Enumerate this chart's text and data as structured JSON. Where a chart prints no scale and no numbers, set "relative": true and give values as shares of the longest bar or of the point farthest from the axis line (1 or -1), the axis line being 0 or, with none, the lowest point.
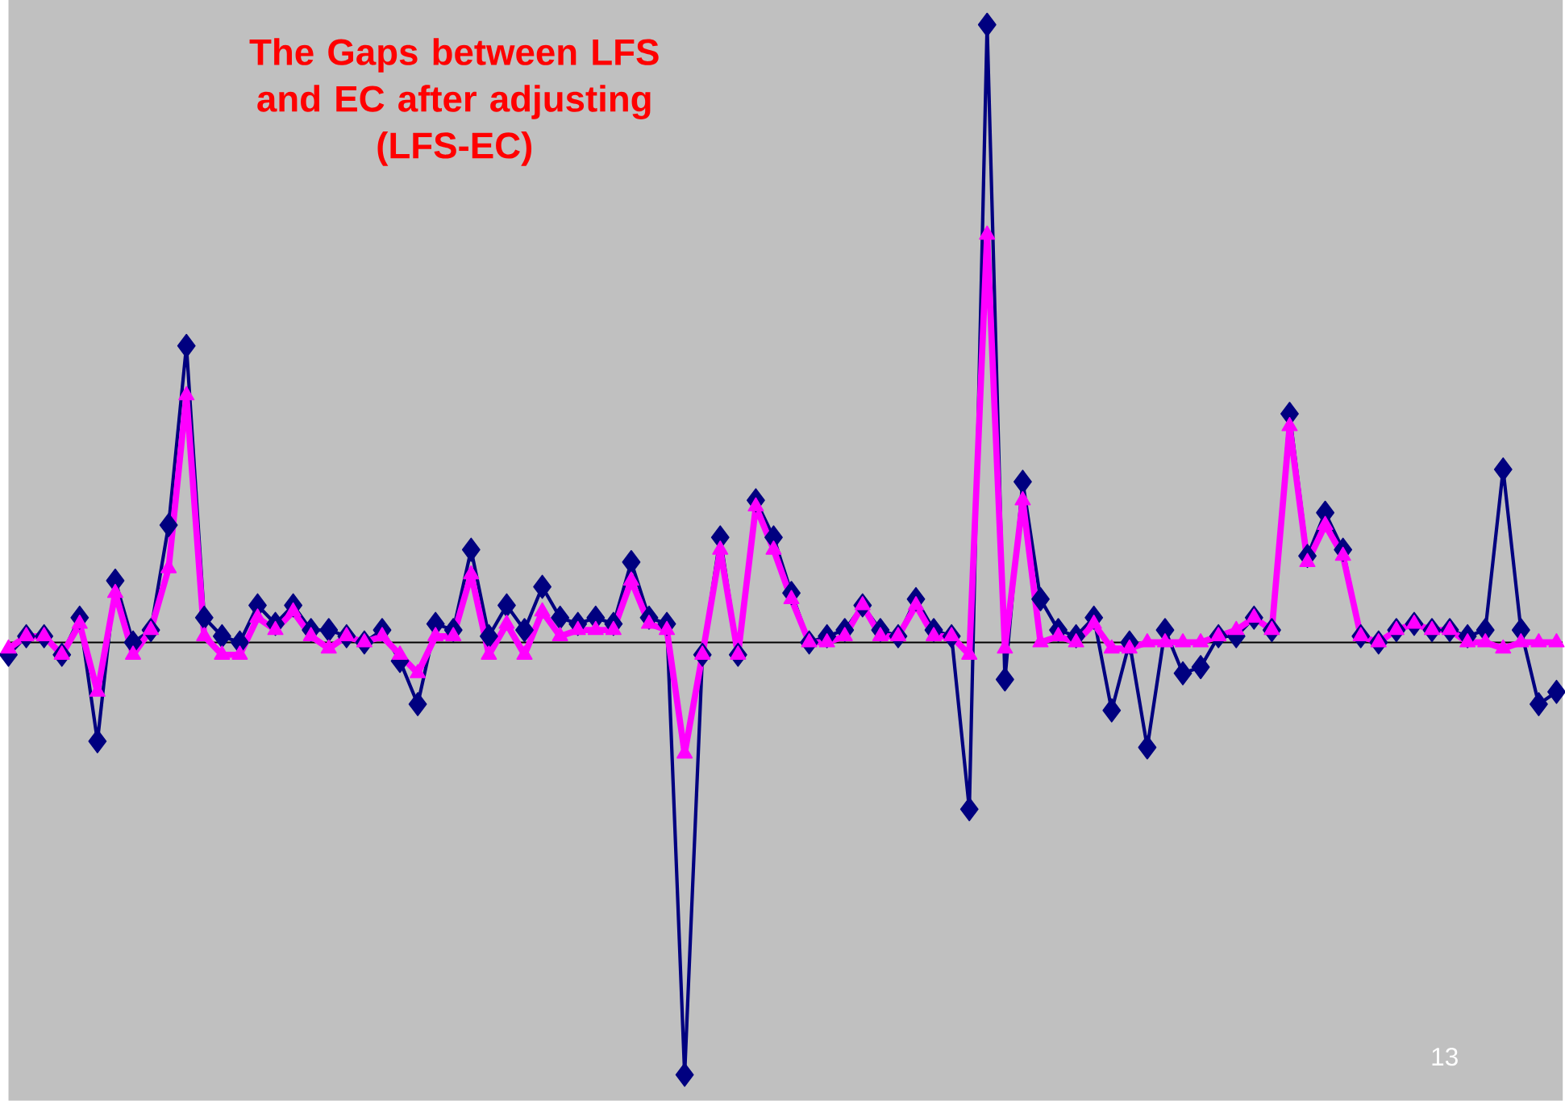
{
  "chart_data": {
    "type": "line",
    "relative": true,
    "title": "The Gaps between LFS and EC after adjusting",
    "subtitle": "(LFS-EC)",
    "annotations": [
      "13"
    ],
    "categories": [
      null,
      null,
      null,
      null,
      null,
      null,
      null,
      null,
      null,
      null,
      null,
      null,
      null,
      null,
      null,
      null,
      null,
      null,
      null,
      null,
      null,
      null,
      null,
      null,
      null,
      null,
      null,
      null,
      null,
      null,
      null,
      null,
      null,
      null,
      null,
      null,
      null,
      null,
      null,
      null,
      null,
      null,
      null,
      null,
      null,
      null,
      null,
      null,
      null,
      null,
      null,
      null,
      null,
      null,
      null,
      null,
      null,
      null,
      null,
      null,
      null,
      null,
      null,
      null,
      null,
      null,
      null,
      null,
      null,
      null,
      null,
      null,
      null,
      null,
      null,
      null,
      null,
      null,
      null,
      null,
      null,
      null,
      null,
      null,
      null,
      null,
      null,
      null
    ],
    "series": [
      {
        "color": "#000080",
        "marker": "diamond",
        "values": [
          -0.02,
          0.01,
          0.01,
          -0.02,
          0.04,
          -0.16,
          0.1,
          0.0,
          0.02,
          0.19,
          0.48,
          0.04,
          0.01,
          0.0,
          0.06,
          0.03,
          0.06,
          0.02,
          0.02,
          0.01,
          0.0,
          0.02,
          -0.03,
          -0.1,
          0.03,
          0.02,
          0.15,
          0.01,
          0.06,
          0.02,
          0.09,
          0.04,
          0.03,
          0.04,
          0.03,
          0.13,
          0.04,
          0.03,
          -0.7,
          -0.02,
          0.17,
          -0.02,
          0.23,
          0.17,
          0.08,
          0.0,
          0.01,
          0.02,
          0.06,
          0.02,
          0.01,
          0.07,
          0.02,
          0.01,
          -0.27,
          1.0,
          -0.06,
          0.26,
          0.07,
          0.02,
          0.01,
          0.04,
          -0.11,
          0.0,
          -0.17,
          0.02,
          -0.05,
          -0.04,
          0.01,
          0.01,
          0.04,
          0.02,
          0.37,
          0.14,
          0.21,
          0.15,
          0.01,
          0.0,
          0.02,
          0.03,
          0.02,
          0.02,
          0.01,
          0.02,
          0.28,
          0.02,
          -0.1,
          -0.08
        ]
      },
      {
        "color": "#ff00ff",
        "marker": "triangle",
        "values": [
          -0.01,
          0.01,
          0.01,
          -0.02,
          0.03,
          -0.08,
          0.08,
          -0.02,
          0.02,
          0.12,
          0.4,
          0.01,
          -0.02,
          -0.02,
          0.04,
          0.02,
          0.05,
          0.01,
          -0.01,
          0.01,
          0.0,
          0.01,
          -0.02,
          -0.05,
          0.01,
          0.01,
          0.11,
          -0.02,
          0.03,
          -0.02,
          0.05,
          0.01,
          0.02,
          0.02,
          0.02,
          0.1,
          0.03,
          0.02,
          -0.18,
          -0.02,
          0.15,
          -0.02,
          0.22,
          0.15,
          0.07,
          0.0,
          0.0,
          0.01,
          0.06,
          0.01,
          0.01,
          0.06,
          0.01,
          0.01,
          -0.02,
          0.66,
          -0.01,
          0.23,
          0.0,
          0.01,
          0.0,
          0.03,
          -0.01,
          -0.01,
          0.0,
          0.0,
          0.0,
          0.0,
          0.01,
          0.02,
          0.04,
          0.02,
          0.35,
          0.13,
          0.19,
          0.14,
          0.01,
          0.0,
          0.02,
          0.03,
          0.02,
          0.02,
          0.0,
          0.0,
          -0.01,
          0.0,
          0.0,
          0.0
        ]
      }
    ]
  }
}
